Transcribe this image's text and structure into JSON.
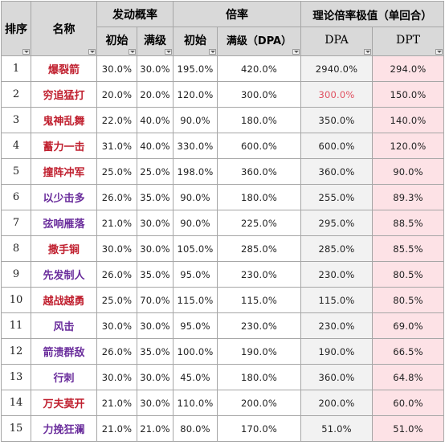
{
  "headers": {
    "rank": "排序",
    "name": "名称",
    "trigger_group": "发动概率",
    "trigger_initial": "初始",
    "trigger_max": "满级",
    "mult_group": "倍率",
    "mult_initial": "初始",
    "mult_max": "满级（DPA）",
    "theory_group": "理论倍率极值（单回合）",
    "dpa": "DPA",
    "dpt": "DPT"
  },
  "colors": {
    "header_bg": "#d9d9d9",
    "dpa_bg": "#f2f2f2",
    "dpt_bg": "#fde2e6",
    "name_red": "#c0202f",
    "name_purple": "#6a2d9c",
    "highlight_red": "#e05060"
  },
  "rows": [
    {
      "rank": "1",
      "name": "爆裂箭",
      "name_color": "#c0202f",
      "trig_init": "30.0%",
      "trig_max": "30.0%",
      "mult_init": "195.0%",
      "mult_max": "420.0%",
      "dpa": "2940.0%",
      "dpa_color": "#222222",
      "dpt": "294.0%"
    },
    {
      "rank": "2",
      "name": "穷追猛打",
      "name_color": "#c0202f",
      "trig_init": "20.0%",
      "trig_max": "20.0%",
      "mult_init": "120.0%",
      "mult_max": "300.0%",
      "dpa": "300.0%",
      "dpa_color": "#e05060",
      "dpt": "150.0%"
    },
    {
      "rank": "3",
      "name": "鬼神乱舞",
      "name_color": "#c0202f",
      "trig_init": "22.0%",
      "trig_max": "40.0%",
      "mult_init": "90.0%",
      "mult_max": "180.0%",
      "dpa": "350.0%",
      "dpa_color": "#222222",
      "dpt": "140.0%"
    },
    {
      "rank": "4",
      "name": "蓄力一击",
      "name_color": "#c0202f",
      "trig_init": "31.0%",
      "trig_max": "40.0%",
      "mult_init": "330.0%",
      "mult_max": "600.0%",
      "dpa": "600.0%",
      "dpa_color": "#222222",
      "dpt": "120.0%"
    },
    {
      "rank": "5",
      "name": "撞阵冲军",
      "name_color": "#c0202f",
      "trig_init": "25.0%",
      "trig_max": "25.0%",
      "mult_init": "198.0%",
      "mult_max": "360.0%",
      "dpa": "360.0%",
      "dpa_color": "#222222",
      "dpt": "90.0%"
    },
    {
      "rank": "6",
      "name": "以少击多",
      "name_color": "#6a2d9c",
      "trig_init": "26.0%",
      "trig_max": "35.0%",
      "mult_init": "90.0%",
      "mult_max": "180.0%",
      "dpa": "255.0%",
      "dpa_color": "#222222",
      "dpt": "89.3%"
    },
    {
      "rank": "7",
      "name": "弦响雁落",
      "name_color": "#6a2d9c",
      "trig_init": "21.0%",
      "trig_max": "30.0%",
      "mult_init": "90.0%",
      "mult_max": "225.0%",
      "dpa": "295.0%",
      "dpa_color": "#222222",
      "dpt": "88.5%"
    },
    {
      "rank": "8",
      "name": "撒手锏",
      "name_color": "#c0202f",
      "trig_init": "30.0%",
      "trig_max": "30.0%",
      "mult_init": "105.0%",
      "mult_max": "285.0%",
      "dpa": "285.0%",
      "dpa_color": "#222222",
      "dpt": "85.5%"
    },
    {
      "rank": "9",
      "name": "先发制人",
      "name_color": "#6a2d9c",
      "trig_init": "26.0%",
      "trig_max": "35.0%",
      "mult_init": "95.0%",
      "mult_max": "230.0%",
      "dpa": "230.0%",
      "dpa_color": "#222222",
      "dpt": "80.5%"
    },
    {
      "rank": "10",
      "name": "越战越勇",
      "name_color": "#c0202f",
      "trig_init": "25.0%",
      "trig_max": "70.0%",
      "mult_init": "115.0%",
      "mult_max": "115.0%",
      "dpa": "115.0%",
      "dpa_color": "#222222",
      "dpt": "80.5%"
    },
    {
      "rank": "11",
      "name": "风击",
      "name_color": "#6a2d9c",
      "trig_init": "30.0%",
      "trig_max": "30.0%",
      "mult_init": "95.0%",
      "mult_max": "230.0%",
      "dpa": "230.0%",
      "dpa_color": "#222222",
      "dpt": "69.0%"
    },
    {
      "rank": "12",
      "name": "箭溃群敌",
      "name_color": "#6a2d9c",
      "trig_init": "26.0%",
      "trig_max": "35.0%",
      "mult_init": "100.0%",
      "mult_max": "190.0%",
      "dpa": "190.0%",
      "dpa_color": "#222222",
      "dpt": "66.5%"
    },
    {
      "rank": "13",
      "name": "行刺",
      "name_color": "#6a2d9c",
      "trig_init": "30.0%",
      "trig_max": "30.0%",
      "mult_init": "45.0%",
      "mult_max": "180.0%",
      "dpa": "360.0%",
      "dpa_color": "#222222",
      "dpt": "64.8%"
    },
    {
      "rank": "14",
      "name": "万夫莫开",
      "name_color": "#c0202f",
      "trig_init": "21.0%",
      "trig_max": "30.0%",
      "mult_init": "110.0%",
      "mult_max": "200.0%",
      "dpa": "200.0%",
      "dpa_color": "#222222",
      "dpt": "60.0%"
    },
    {
      "rank": "15",
      "name": "力挽狂澜",
      "name_color": "#6a2d9c",
      "trig_init": "21.0%",
      "trig_max": "21.0%",
      "mult_init": "80.0%",
      "mult_max": "170.0%",
      "dpa": "51.0%",
      "dpa_color": "#222222",
      "dpt": "51.0%"
    }
  ]
}
